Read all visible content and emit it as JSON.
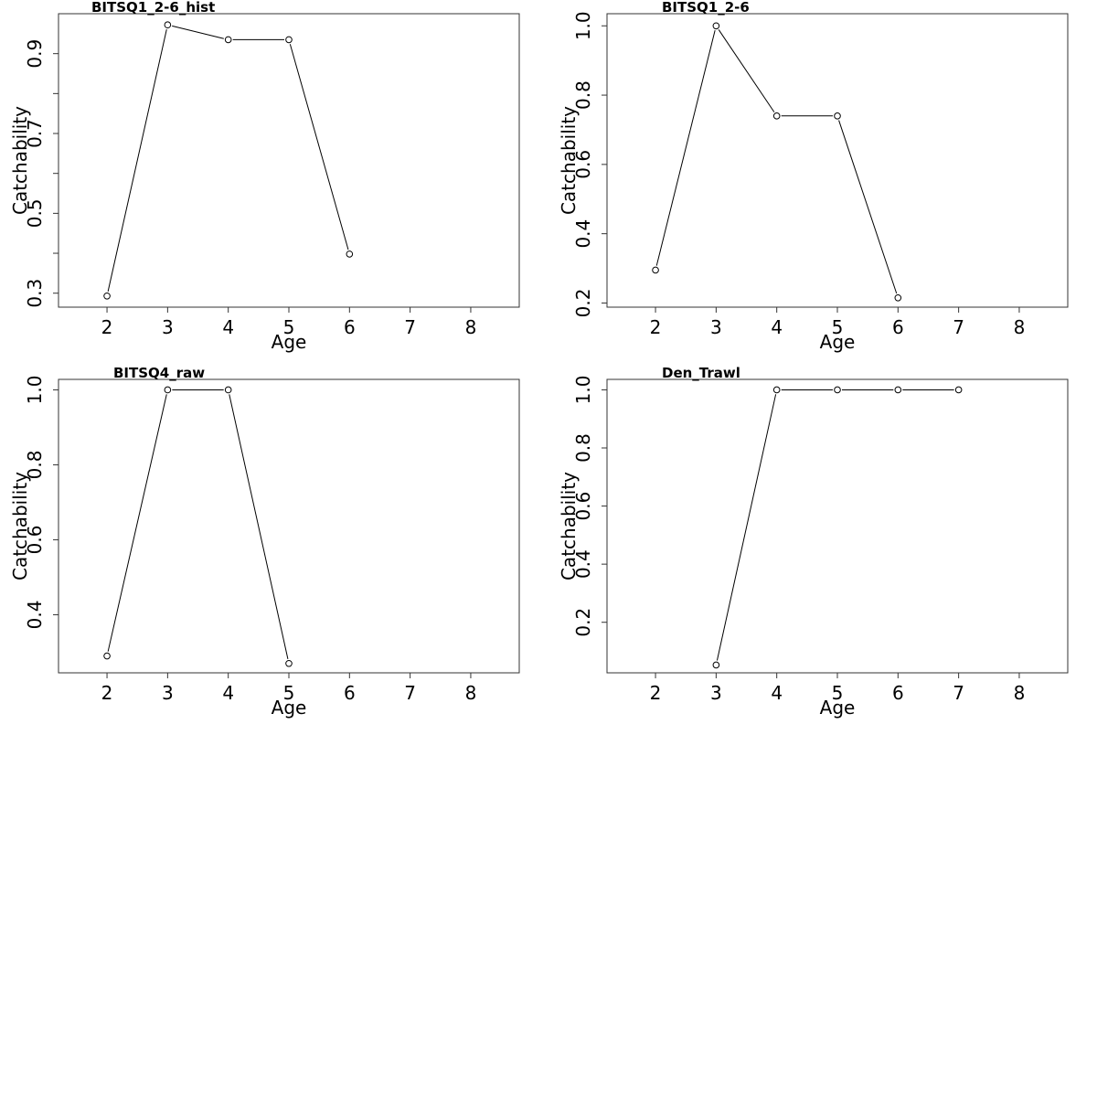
{
  "chart_data": [
    {
      "type": "line",
      "title": "BITSQ1_2-6_hist",
      "xlabel": "Age",
      "ylabel": "Catchability",
      "xlim": [
        1.2,
        8.8
      ],
      "ylim": [
        0.265,
        1.0
      ],
      "xticks": [
        2,
        3,
        4,
        5,
        6,
        7,
        8
      ],
      "xtick_labels": [
        "2",
        "3",
        "4",
        "5",
        "6",
        "7",
        "8"
      ],
      "yticks": [
        0.3,
        0.4,
        0.5,
        0.6,
        0.7,
        0.8,
        0.9
      ],
      "ytick_labels": [
        "0.3",
        "",
        "0.5",
        "",
        "0.7",
        "",
        "0.9"
      ],
      "x": [
        2,
        3,
        4,
        5,
        6
      ],
      "y": [
        0.293,
        0.972,
        0.935,
        0.935,
        0.398
      ],
      "grid": false
    },
    {
      "type": "line",
      "title": "BITSQ1_2-6",
      "xlabel": "Age",
      "ylabel": "Catchability",
      "xlim": [
        1.2,
        8.8
      ],
      "ylim": [
        0.188,
        1.035
      ],
      "xticks": [
        2,
        3,
        4,
        5,
        6,
        7,
        8
      ],
      "xtick_labels": [
        "2",
        "3",
        "4",
        "5",
        "6",
        "7",
        "8"
      ],
      "yticks": [
        0.2,
        0.4,
        0.6,
        0.8,
        1.0
      ],
      "ytick_labels": [
        "0.2",
        "0.4",
        "0.6",
        "0.8",
        "1.0"
      ],
      "x": [
        2,
        3,
        4,
        5,
        6
      ],
      "y": [
        0.295,
        1.0,
        0.74,
        0.74,
        0.215
      ],
      "grid": false
    },
    {
      "type": "line",
      "title": "BITSQ4_raw",
      "xlabel": "Age",
      "ylabel": "Catchability",
      "xlim": [
        1.2,
        8.8
      ],
      "ylim": [
        0.245,
        1.028
      ],
      "xticks": [
        2,
        3,
        4,
        5,
        6,
        7,
        8
      ],
      "xtick_labels": [
        "2",
        "3",
        "4",
        "5",
        "6",
        "7",
        "8"
      ],
      "yticks": [
        0.4,
        0.6,
        0.8,
        1.0
      ],
      "ytick_labels": [
        "0.4",
        "0.6",
        "0.8",
        "1.0"
      ],
      "x": [
        2,
        3,
        4,
        5
      ],
      "y": [
        0.29,
        1.0,
        1.0,
        0.27
      ],
      "grid": false
    },
    {
      "type": "line",
      "title": "Den_Trawl",
      "xlabel": "Age",
      "ylabel": "Catchability",
      "xlim": [
        1.2,
        8.8
      ],
      "ylim": [
        0.026,
        1.036
      ],
      "xticks": [
        2,
        3,
        4,
        5,
        6,
        7,
        8
      ],
      "xtick_labels": [
        "2",
        "3",
        "4",
        "5",
        "6",
        "7",
        "8"
      ],
      "yticks": [
        0.2,
        0.4,
        0.6,
        0.8,
        1.0
      ],
      "ytick_labels": [
        "0.2",
        "0.4",
        "0.6",
        "0.8",
        "1.0"
      ],
      "x": [
        3,
        4,
        5,
        6,
        7
      ],
      "y": [
        0.053,
        1.0,
        1.0,
        1.0,
        1.0
      ],
      "grid": false
    }
  ]
}
